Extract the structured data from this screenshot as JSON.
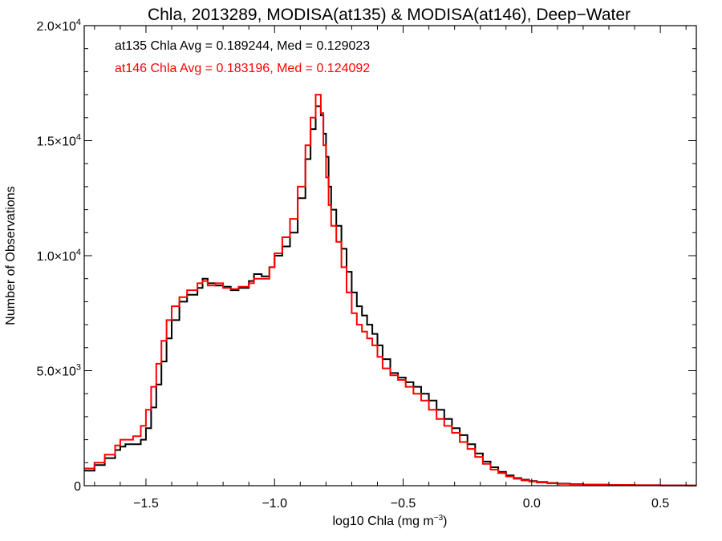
{
  "chart_data": {
    "type": "line",
    "title": "Chla, 2013289, MODISA(at135) & MODISA(at146), Deep−Water",
    "xlabel": "log10 Chla (mg m",
    "xlabel_sup": "−3",
    "xlabel_tail": ")",
    "ylabel": "Number of Observations",
    "xlim": [
      -1.74,
      0.64
    ],
    "ylim": [
      0,
      20000
    ],
    "grid": false,
    "x_ticks": [
      {
        "value": -1.5,
        "label": "−1.5"
      },
      {
        "value": -1.0,
        "label": "−1.0"
      },
      {
        "value": -0.5,
        "label": "−0.5"
      },
      {
        "value": 0.0,
        "label": "0.0"
      },
      {
        "value": 0.5,
        "label": "0.5"
      }
    ],
    "y_ticks": [
      {
        "value": 0,
        "label": "0",
        "sup": ""
      },
      {
        "value": 5000,
        "label": "5.0×10",
        "sup": "3"
      },
      {
        "value": 10000,
        "label": "1.0×10",
        "sup": "4"
      },
      {
        "value": 15000,
        "label": "1.5×10",
        "sup": "4"
      },
      {
        "value": 20000,
        "label": "2.0×10",
        "sup": "4"
      }
    ],
    "annotations": [
      {
        "text": "at135 Chla Avg = 0.189244, Med = 0.129023",
        "color": "#000000"
      },
      {
        "text": "at146 Chla Avg = 0.183196, Med = 0.124092",
        "color": "#ff0000"
      }
    ],
    "series": [
      {
        "name": "at135",
        "color": "#000000",
        "x": [
          -1.74,
          -1.7,
          -1.66,
          -1.62,
          -1.6,
          -1.58,
          -1.55,
          -1.52,
          -1.5,
          -1.48,
          -1.46,
          -1.44,
          -1.42,
          -1.4,
          -1.37,
          -1.34,
          -1.3,
          -1.28,
          -1.26,
          -1.23,
          -1.2,
          -1.17,
          -1.14,
          -1.1,
          -1.08,
          -1.05,
          -1.02,
          -1.0,
          -0.97,
          -0.94,
          -0.91,
          -0.88,
          -0.86,
          -0.84,
          -0.83,
          -0.82,
          -0.81,
          -0.8,
          -0.79,
          -0.78,
          -0.76,
          -0.74,
          -0.72,
          -0.7,
          -0.68,
          -0.66,
          -0.64,
          -0.62,
          -0.6,
          -0.58,
          -0.55,
          -0.52,
          -0.49,
          -0.46,
          -0.43,
          -0.4,
          -0.37,
          -0.34,
          -0.31,
          -0.28,
          -0.25,
          -0.22,
          -0.19,
          -0.16,
          -0.13,
          -0.1,
          -0.07,
          -0.04,
          -0.01,
          0.02,
          0.06,
          0.1,
          0.15,
          0.2,
          0.3,
          0.4,
          0.5,
          0.6,
          0.64
        ],
        "values": [
          650,
          900,
          1200,
          1550,
          1700,
          1800,
          1800,
          2000,
          2500,
          3400,
          4400,
          5400,
          6400,
          7200,
          8000,
          8300,
          8600,
          9000,
          8800,
          8700,
          8650,
          8500,
          8600,
          8900,
          9200,
          9100,
          9500,
          10000,
          10400,
          11000,
          12500,
          14200,
          15500,
          16500,
          16500,
          16100,
          15300,
          14300,
          13000,
          12000,
          11300,
          10300,
          9300,
          8400,
          7800,
          7400,
          7000,
          6600,
          6100,
          5500,
          4900,
          4700,
          4500,
          4300,
          4000,
          3700,
          3300,
          2900,
          2500,
          2200,
          1800,
          1400,
          1050,
          800,
          600,
          450,
          330,
          260,
          200,
          160,
          120,
          90,
          70,
          50,
          30,
          20,
          15,
          10,
          10
        ]
      },
      {
        "name": "at146",
        "color": "#ff0000",
        "x": [
          -1.74,
          -1.7,
          -1.66,
          -1.62,
          -1.6,
          -1.58,
          -1.55,
          -1.52,
          -1.5,
          -1.48,
          -1.46,
          -1.44,
          -1.42,
          -1.4,
          -1.37,
          -1.34,
          -1.3,
          -1.28,
          -1.26,
          -1.23,
          -1.2,
          -1.17,
          -1.14,
          -1.1,
          -1.08,
          -1.05,
          -1.02,
          -1.0,
          -0.97,
          -0.94,
          -0.91,
          -0.88,
          -0.86,
          -0.84,
          -0.83,
          -0.82,
          -0.81,
          -0.8,
          -0.79,
          -0.78,
          -0.76,
          -0.74,
          -0.72,
          -0.7,
          -0.68,
          -0.66,
          -0.64,
          -0.62,
          -0.6,
          -0.58,
          -0.55,
          -0.52,
          -0.49,
          -0.46,
          -0.43,
          -0.4,
          -0.37,
          -0.34,
          -0.31,
          -0.28,
          -0.25,
          -0.22,
          -0.19,
          -0.16,
          -0.13,
          -0.1,
          -0.07,
          -0.04,
          -0.01,
          0.02,
          0.06,
          0.1,
          0.15,
          0.2,
          0.3,
          0.4,
          0.5,
          0.6,
          0.64
        ],
        "values": [
          750,
          1000,
          1350,
          1750,
          2000,
          2000,
          2150,
          2600,
          3300,
          4300,
          5300,
          6300,
          7200,
          7800,
          8200,
          8500,
          8800,
          8900,
          8700,
          8800,
          8600,
          8550,
          8650,
          8800,
          9000,
          9000,
          9500,
          10100,
          10800,
          11600,
          13000,
          14800,
          16000,
          17000,
          17000,
          16200,
          14800,
          13400,
          12200,
          11300,
          10600,
          9500,
          8400,
          7500,
          7000,
          6700,
          6400,
          6100,
          5600,
          5100,
          4800,
          4600,
          4300,
          4000,
          3700,
          3300,
          2900,
          2600,
          2300,
          1900,
          1600,
          1250,
          950,
          700,
          550,
          400,
          300,
          230,
          180,
          140,
          100,
          80,
          60,
          45,
          30,
          20,
          15,
          10,
          10
        ]
      }
    ]
  }
}
